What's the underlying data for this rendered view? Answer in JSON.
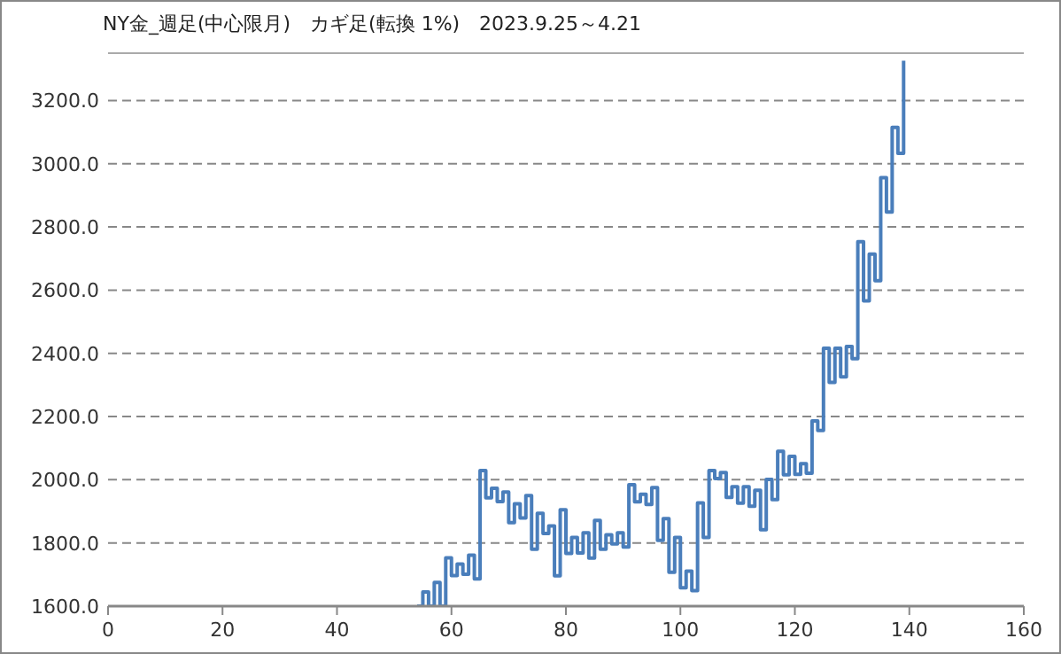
{
  "chart_data": {
    "type": "step",
    "title": "NY金_週足(中心限月)　カギ足(転換 1%)　2023.9.25～4.21",
    "series": [
      {
        "color": "#4a7ebb",
        "x": [
          54,
          55,
          56,
          57,
          58,
          59,
          60,
          61,
          62,
          63,
          64,
          65,
          66,
          67,
          68,
          69,
          70,
          71,
          72,
          73,
          74,
          75,
          76,
          77,
          78,
          79,
          80,
          81,
          82,
          83,
          84,
          85,
          86,
          87,
          88,
          89,
          90,
          91,
          92,
          93,
          94,
          95,
          96,
          97,
          98,
          99,
          100,
          101,
          102,
          103,
          104,
          105,
          106,
          107,
          108,
          109,
          110,
          111,
          112,
          113,
          114,
          115,
          116,
          117,
          118,
          119,
          120,
          121,
          122,
          123,
          124,
          125,
          126,
          127,
          128,
          129,
          130,
          131,
          132,
          133,
          134,
          135,
          136,
          137,
          138,
          139
        ],
        "values": [
          1600,
          1645,
          1600,
          1675,
          1600,
          1753,
          1697,
          1733,
          1701,
          1761,
          1686,
          2029,
          1943,
          1973,
          1931,
          1961,
          1864,
          1924,
          1879,
          1950,
          1780,
          1894,
          1830,
          1854,
          1696,
          1905,
          1767,
          1817,
          1768,
          1832,
          1752,
          1871,
          1780,
          1826,
          1797,
          1832,
          1787,
          1984,
          1930,
          1954,
          1922,
          1975,
          1808,
          1877,
          1707,
          1817,
          1658,
          1711,
          1649,
          1927,
          1817,
          2029,
          2004,
          2023,
          1944,
          1978,
          1926,
          1978,
          1916,
          1967,
          1842,
          2001,
          1937,
          2090,
          2016,
          2074,
          2017,
          2051,
          2021,
          2186,
          2156,
          2416,
          2308,
          2416,
          2326,
          2422,
          2383,
          2753,
          2566,
          2714,
          2630,
          2956,
          2847,
          3115,
          3033,
          3326
        ]
      }
    ],
    "xlim": [
      0,
      160
    ],
    "xticks": [
      0,
      20,
      40,
      60,
      80,
      100,
      120,
      140,
      160
    ],
    "ylim": [
      1600,
      3350
    ],
    "yticks": [
      {
        "value": 1600,
        "label": "1600.0"
      },
      {
        "value": 1800,
        "label": "1800.0"
      },
      {
        "value": 2000,
        "label": "2000.0"
      },
      {
        "value": 2200,
        "label": "2200.0"
      },
      {
        "value": 2400,
        "label": "2400.0"
      },
      {
        "value": 2600,
        "label": "2600.0"
      },
      {
        "value": 2800,
        "label": "2800.0"
      },
      {
        "value": 3000,
        "label": "3000.0"
      },
      {
        "value": 3200,
        "label": "3200.0"
      }
    ],
    "grid": "y",
    "line_style": "solid"
  }
}
